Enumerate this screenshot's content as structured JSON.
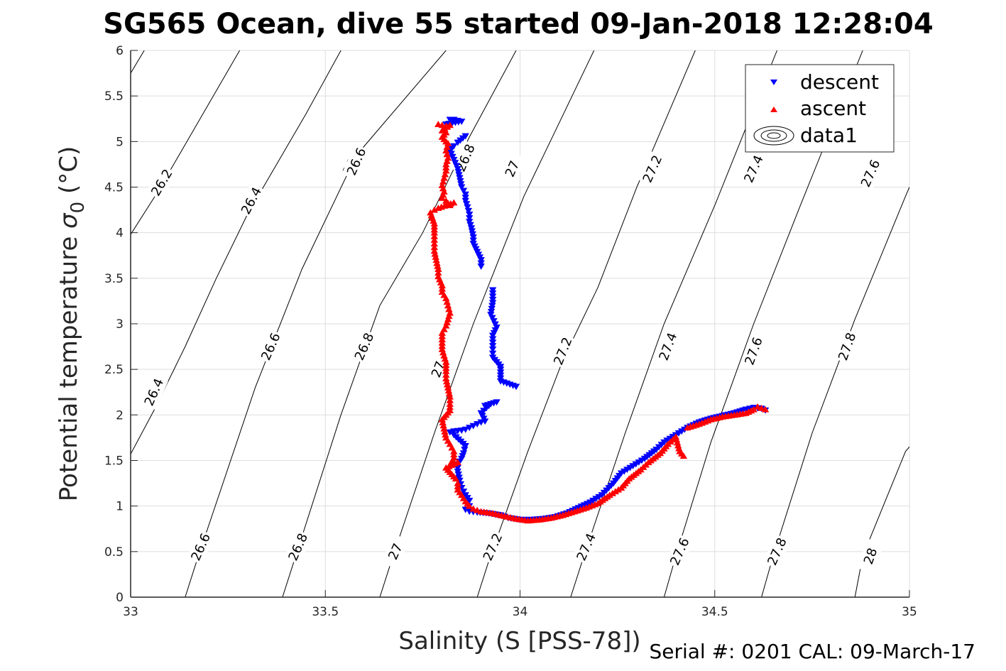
{
  "chart_data": {
    "type": "scatter",
    "title": "SG565 Ocean, dive 55 started 09-Jan-2018 12:28:04",
    "xlabel": "Salinity (S [PSS-78])",
    "ylabel_main": "Potential temperature ",
    "ylabel_sigma": "σ",
    "ylabel_sub": "0",
    "ylabel_unit": " (°C)",
    "footer": "Serial #: 0201  CAL: 09-March-17",
    "xlim": [
      33,
      35
    ],
    "ylim": [
      0,
      6
    ],
    "x_ticks": [
      33,
      33.5,
      34,
      34.5,
      35
    ],
    "x_tick_labels": [
      "33",
      "33.5",
      "34",
      "34.5",
      "35"
    ],
    "y_ticks": [
      0,
      0.5,
      1,
      1.5,
      2,
      2.5,
      3,
      3.5,
      4,
      4.5,
      5,
      5.5,
      6
    ],
    "y_tick_labels": [
      "0",
      "0.5",
      "1",
      "1.5",
      "2",
      "2.5",
      "3",
      "3.5",
      "4",
      "4.5",
      "5",
      "5.5",
      "6"
    ],
    "grid": true,
    "legend": {
      "position": "top-right",
      "entries": [
        {
          "label": "descent",
          "marker": "triangle-down",
          "color": "#0000ff"
        },
        {
          "label": "ascent",
          "marker": "triangle-up",
          "color": "#ff0000"
        },
        {
          "label": "data1",
          "marker": "contour",
          "color": "#000000"
        }
      ]
    },
    "contours": [
      {
        "level": "26.2",
        "points": [
          [
            33.0,
            5.75
          ],
          [
            33.035,
            6.0
          ]
        ],
        "label_at": null
      },
      {
        "level": "26.2",
        "points": [
          [
            33.0,
            3.98
          ],
          [
            33.07,
            4.45
          ],
          [
            33.28,
            6.0
          ]
        ],
        "label_at": [
          33.08,
          4.55
        ]
      },
      {
        "level": "26.4",
        "points": [
          [
            33.0,
            1.57
          ],
          [
            33.06,
            2.05
          ],
          [
            33.14,
            2.75
          ],
          [
            33.22,
            3.5
          ],
          [
            33.3,
            4.2
          ],
          [
            33.45,
            5.3
          ],
          [
            33.54,
            6.0
          ]
        ],
        "label_at": [
          33.31,
          4.35
        ]
      },
      {
        "level": "26.6",
        "points": [
          [
            33.14,
            0.0
          ],
          [
            33.17,
            0.4
          ],
          [
            33.32,
            2.3
          ],
          [
            33.44,
            3.6
          ],
          [
            33.58,
            4.85
          ],
          [
            33.81,
            6.0
          ]
        ],
        "label_at": [
          33.57,
          4.78
        ]
      },
      {
        "level": "26.8",
        "points": [
          [
            33.39,
            0.0
          ],
          [
            33.42,
            0.4
          ],
          [
            33.54,
            2.0
          ],
          [
            33.64,
            3.2
          ],
          [
            33.75,
            4.0
          ],
          [
            33.87,
            5.05
          ],
          [
            33.99,
            6.0
          ]
        ],
        "label_at": [
          33.86,
          4.82
        ]
      },
      {
        "level": "27",
        "points": [
          [
            33.64,
            0.0
          ],
          [
            33.67,
            0.4
          ],
          [
            33.78,
            1.8
          ],
          [
            33.88,
            3.0
          ],
          [
            34.01,
            4.4
          ],
          [
            34.19,
            6.0
          ]
        ],
        "label_at": [
          33.79,
          2.5
        ]
      },
      {
        "level": "27.2",
        "points": [
          [
            33.89,
            0.0
          ],
          [
            33.92,
            0.4
          ],
          [
            34.02,
            1.6
          ],
          [
            34.11,
            2.6
          ],
          [
            34.2,
            3.4
          ],
          [
            34.3,
            4.5
          ],
          [
            34.45,
            6.0
          ]
        ],
        "label_at": [
          34.11,
          2.7
        ]
      },
      {
        "level": "27.4",
        "points": [
          [
            34.13,
            0.0
          ],
          [
            34.16,
            0.4
          ],
          [
            34.27,
            1.8
          ],
          [
            34.37,
            3.0
          ],
          [
            34.5,
            4.3
          ],
          [
            34.66,
            6.0
          ]
        ],
        "label_at": [
          34.38,
          2.75
        ]
      },
      {
        "level": "27.6",
        "points": [
          [
            34.37,
            0.0
          ],
          [
            34.4,
            0.45
          ],
          [
            34.49,
            1.7
          ],
          [
            34.6,
            3.0
          ],
          [
            34.72,
            4.3
          ],
          [
            34.88,
            6.0
          ]
        ],
        "label_at": [
          34.6,
          2.7
        ]
      },
      {
        "level": "27.8",
        "points": [
          [
            34.62,
            0.0
          ],
          [
            34.65,
            0.45
          ],
          [
            34.75,
            1.8
          ],
          [
            34.86,
            3.05
          ],
          [
            34.99,
            4.4
          ],
          [
            35.0,
            4.5
          ]
        ],
        "label_at": [
          34.84,
          2.75
        ]
      },
      {
        "level": "28",
        "points": [
          [
            34.86,
            0.0
          ],
          [
            34.88,
            0.45
          ],
          [
            34.99,
            1.6
          ],
          [
            35.0,
            1.65
          ]
        ],
        "label_at": [
          34.9,
          0.45
        ]
      }
    ],
    "series": [
      {
        "name": "descent",
        "marker": "triangle-down",
        "color": "#0000ff",
        "points": [
          [
            33.82,
            5.24
          ],
          [
            33.83,
            5.24
          ],
          [
            33.84,
            5.23
          ],
          [
            33.85,
            5.22
          ],
          [
            33.81,
            5.19
          ],
          [
            33.86,
            5.06
          ],
          [
            33.84,
            4.99
          ],
          [
            33.83,
            4.95
          ],
          [
            33.82,
            4.9
          ],
          [
            33.83,
            4.8
          ],
          [
            33.84,
            4.7
          ],
          [
            33.845,
            4.6
          ],
          [
            33.85,
            4.5
          ],
          [
            33.86,
            4.42
          ],
          [
            33.86,
            4.35
          ],
          [
            33.865,
            4.28
          ],
          [
            33.87,
            4.2
          ],
          [
            33.87,
            4.12
          ],
          [
            33.875,
            4.05
          ],
          [
            33.88,
            3.95
          ],
          [
            33.88,
            3.88
          ],
          [
            33.9,
            3.7
          ],
          [
            33.9,
            3.63
          ],
          [
            33.93,
            3.37
          ],
          [
            33.93,
            3.23
          ],
          [
            33.925,
            3.1
          ],
          [
            33.94,
            2.96
          ],
          [
            33.93,
            2.87
          ],
          [
            33.93,
            2.72
          ],
          [
            33.93,
            2.63
          ],
          [
            33.95,
            2.53
          ],
          [
            33.95,
            2.37
          ],
          [
            33.99,
            2.31
          ],
          [
            33.94,
            2.14
          ],
          [
            33.91,
            2.1
          ],
          [
            33.92,
            2.1
          ],
          [
            33.9,
            2.02
          ],
          [
            33.91,
            1.93
          ],
          [
            33.9,
            1.92
          ],
          [
            33.89,
            1.9
          ],
          [
            33.88,
            1.88
          ],
          [
            33.87,
            1.86
          ],
          [
            33.86,
            1.84
          ],
          [
            33.85,
            1.83
          ],
          [
            33.83,
            1.82
          ],
          [
            33.82,
            1.81
          ],
          [
            33.83,
            1.78
          ],
          [
            33.86,
            1.66
          ],
          [
            33.855,
            1.58
          ],
          [
            33.85,
            1.52
          ],
          [
            33.84,
            1.46
          ],
          [
            33.84,
            1.38
          ],
          [
            33.845,
            1.28
          ],
          [
            33.85,
            1.2
          ],
          [
            33.86,
            1.12
          ],
          [
            33.87,
            1.06
          ],
          [
            33.87,
            1.0
          ],
          [
            33.86,
            0.96
          ],
          [
            33.87,
            0.94
          ],
          [
            33.89,
            0.93
          ],
          [
            33.92,
            0.92
          ],
          [
            33.95,
            0.9
          ],
          [
            33.97,
            0.87
          ],
          [
            34.0,
            0.85
          ],
          [
            34.03,
            0.85
          ],
          [
            34.06,
            0.86
          ],
          [
            34.09,
            0.88
          ],
          [
            34.12,
            0.92
          ],
          [
            34.15,
            0.98
          ],
          [
            34.18,
            1.04
          ],
          [
            34.21,
            1.12
          ],
          [
            34.24,
            1.25
          ],
          [
            34.26,
            1.36
          ],
          [
            34.29,
            1.44
          ],
          [
            34.32,
            1.52
          ],
          [
            34.35,
            1.62
          ],
          [
            34.37,
            1.7
          ],
          [
            34.4,
            1.78
          ],
          [
            34.43,
            1.86
          ],
          [
            34.46,
            1.92
          ],
          [
            34.49,
            1.96
          ],
          [
            34.52,
            1.99
          ],
          [
            34.55,
            2.02
          ],
          [
            34.58,
            2.06
          ],
          [
            34.6,
            2.08
          ],
          [
            34.62,
            2.07
          ],
          [
            34.63,
            2.05
          ]
        ]
      },
      {
        "name": "ascent",
        "marker": "triangle-up",
        "color": "#ff0000",
        "points": [
          [
            33.79,
            5.19
          ],
          [
            33.8,
            5.18
          ],
          [
            33.81,
            5.17
          ],
          [
            33.82,
            5.18
          ],
          [
            33.8,
            5.12
          ],
          [
            33.81,
            5.1
          ],
          [
            33.8,
            5.05
          ],
          [
            33.81,
            5.0
          ],
          [
            33.815,
            4.98
          ],
          [
            33.81,
            4.9
          ],
          [
            33.815,
            4.82
          ],
          [
            33.81,
            4.75
          ],
          [
            33.81,
            4.68
          ],
          [
            33.805,
            4.6
          ],
          [
            33.8,
            4.52
          ],
          [
            33.805,
            4.45
          ],
          [
            33.8,
            4.38
          ],
          [
            33.81,
            4.35
          ],
          [
            33.82,
            4.3
          ],
          [
            33.83,
            4.33
          ],
          [
            33.79,
            4.27
          ],
          [
            33.78,
            4.25
          ],
          [
            33.77,
            4.22
          ],
          [
            33.78,
            4.1
          ],
          [
            33.78,
            4.0
          ],
          [
            33.78,
            3.88
          ],
          [
            33.78,
            3.8
          ],
          [
            33.79,
            3.6
          ],
          [
            33.79,
            3.52
          ],
          [
            33.8,
            3.42
          ],
          [
            33.8,
            3.35
          ],
          [
            33.81,
            3.28
          ],
          [
            33.815,
            3.2
          ],
          [
            33.82,
            3.12
          ],
          [
            33.815,
            3.05
          ],
          [
            33.81,
            2.98
          ],
          [
            33.8,
            2.9
          ],
          [
            33.8,
            2.72
          ],
          [
            33.805,
            2.65
          ],
          [
            33.81,
            2.58
          ],
          [
            33.81,
            2.48
          ],
          [
            33.81,
            2.4
          ],
          [
            33.815,
            2.3
          ],
          [
            33.82,
            2.2
          ],
          [
            33.82,
            2.12
          ],
          [
            33.82,
            2.05
          ],
          [
            33.81,
            2.0
          ],
          [
            33.8,
            1.95
          ],
          [
            33.81,
            1.75
          ],
          [
            33.82,
            1.68
          ],
          [
            33.83,
            1.6
          ],
          [
            33.83,
            1.53
          ],
          [
            33.82,
            1.45
          ],
          [
            33.84,
            1.48
          ],
          [
            33.81,
            1.42
          ],
          [
            33.835,
            1.3
          ],
          [
            33.84,
            1.25
          ],
          [
            33.84,
            1.18
          ],
          [
            33.85,
            1.12
          ],
          [
            33.86,
            1.05
          ],
          [
            33.87,
            1.0
          ],
          [
            33.88,
            0.97
          ],
          [
            33.9,
            0.94
          ],
          [
            33.93,
            0.92
          ],
          [
            33.96,
            0.89
          ],
          [
            33.99,
            0.86
          ],
          [
            34.02,
            0.84
          ],
          [
            34.05,
            0.85
          ],
          [
            34.08,
            0.87
          ],
          [
            34.11,
            0.9
          ],
          [
            34.14,
            0.94
          ],
          [
            34.17,
            0.98
          ],
          [
            34.2,
            1.03
          ],
          [
            34.23,
            1.12
          ],
          [
            34.26,
            1.2
          ],
          [
            34.28,
            1.3
          ],
          [
            34.31,
            1.4
          ],
          [
            34.33,
            1.48
          ],
          [
            34.36,
            1.58
          ],
          [
            34.38,
            1.68
          ],
          [
            34.4,
            1.76
          ],
          [
            34.41,
            1.6
          ],
          [
            34.42,
            1.55
          ],
          [
            34.43,
            1.86
          ],
          [
            34.46,
            1.9
          ],
          [
            34.49,
            1.95
          ],
          [
            34.52,
            1.98
          ],
          [
            34.55,
            2.0
          ],
          [
            34.58,
            2.02
          ],
          [
            34.6,
            2.06
          ],
          [
            34.61,
            2.09
          ],
          [
            34.63,
            2.06
          ]
        ]
      }
    ]
  }
}
